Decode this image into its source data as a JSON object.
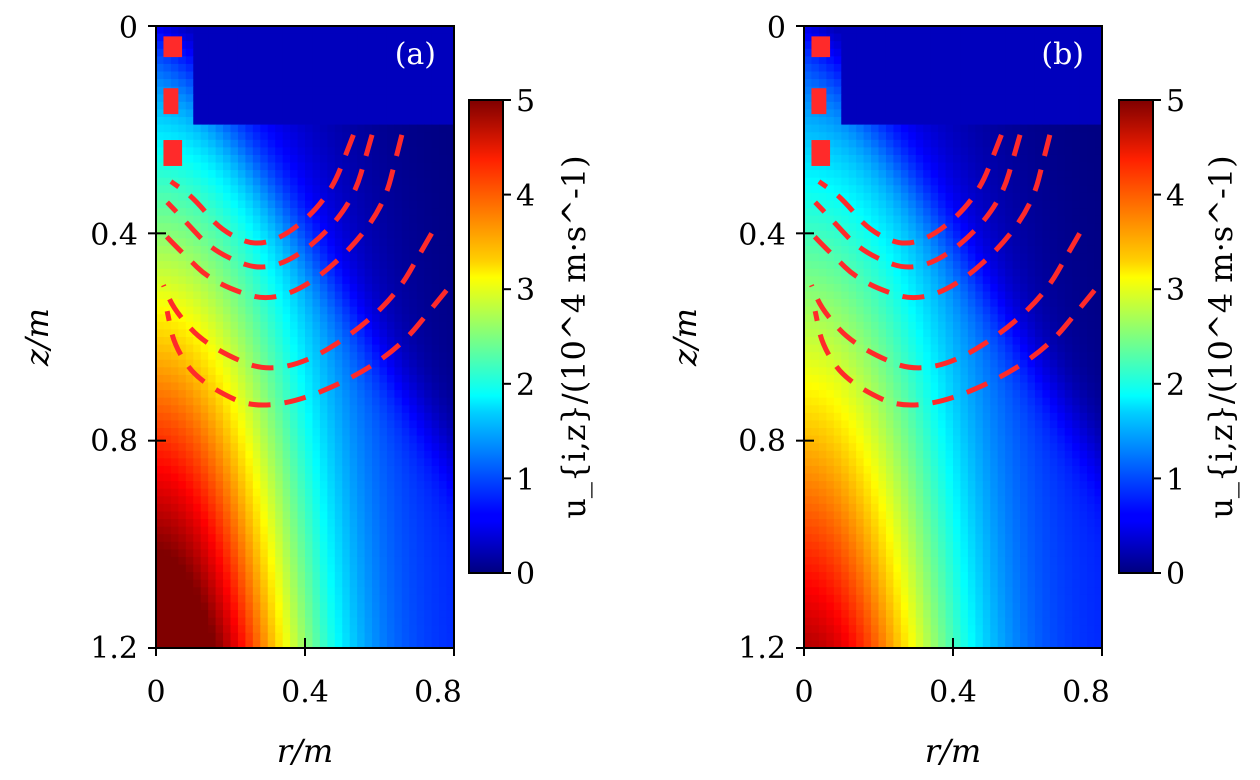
{
  "chart_data": [
    {
      "type": "heatmap",
      "panel_label": "(a)",
      "xlabel": "r/m",
      "ylabel": "z/m",
      "xlim": [
        0,
        0.8
      ],
      "ylim": [
        1.2,
        0
      ],
      "x_ticks": [
        "0",
        "0.4",
        "0.8"
      ],
      "y_ticks": [
        "0",
        "0.4",
        "0.8",
        "1.2"
      ],
      "colorbar": {
        "label": "u_{i,z}/(10^4 m·s^-1)",
        "range": [
          0,
          5
        ],
        "ticks": [
          "0",
          "1",
          "2",
          "3",
          "4",
          "5"
        ],
        "colormap": "jet"
      },
      "peak_value": 5.0,
      "contours": "dashed red magnetic field lines"
    },
    {
      "type": "heatmap",
      "panel_label": "(b)",
      "xlabel": "r/m",
      "ylabel": "z/m",
      "xlim": [
        0,
        0.8
      ],
      "ylim": [
        1.2,
        0
      ],
      "x_ticks": [
        "0",
        "0.4",
        "0.8"
      ],
      "y_ticks": [
        "0",
        "0.4",
        "0.8",
        "1.2"
      ],
      "colorbar": {
        "label": "u_{i,z}/(10^4 m·s^-1)",
        "range": [
          0,
          5
        ],
        "ticks": [
          "0",
          "1",
          "2",
          "3",
          "4",
          "5"
        ],
        "colormap": "jet"
      },
      "peak_value": 4.0,
      "contours": "dashed red magnetic field lines"
    }
  ],
  "colors": {
    "contour": "#ff2a2a",
    "frame": "#000000",
    "panel_label": "#ffffff"
  }
}
